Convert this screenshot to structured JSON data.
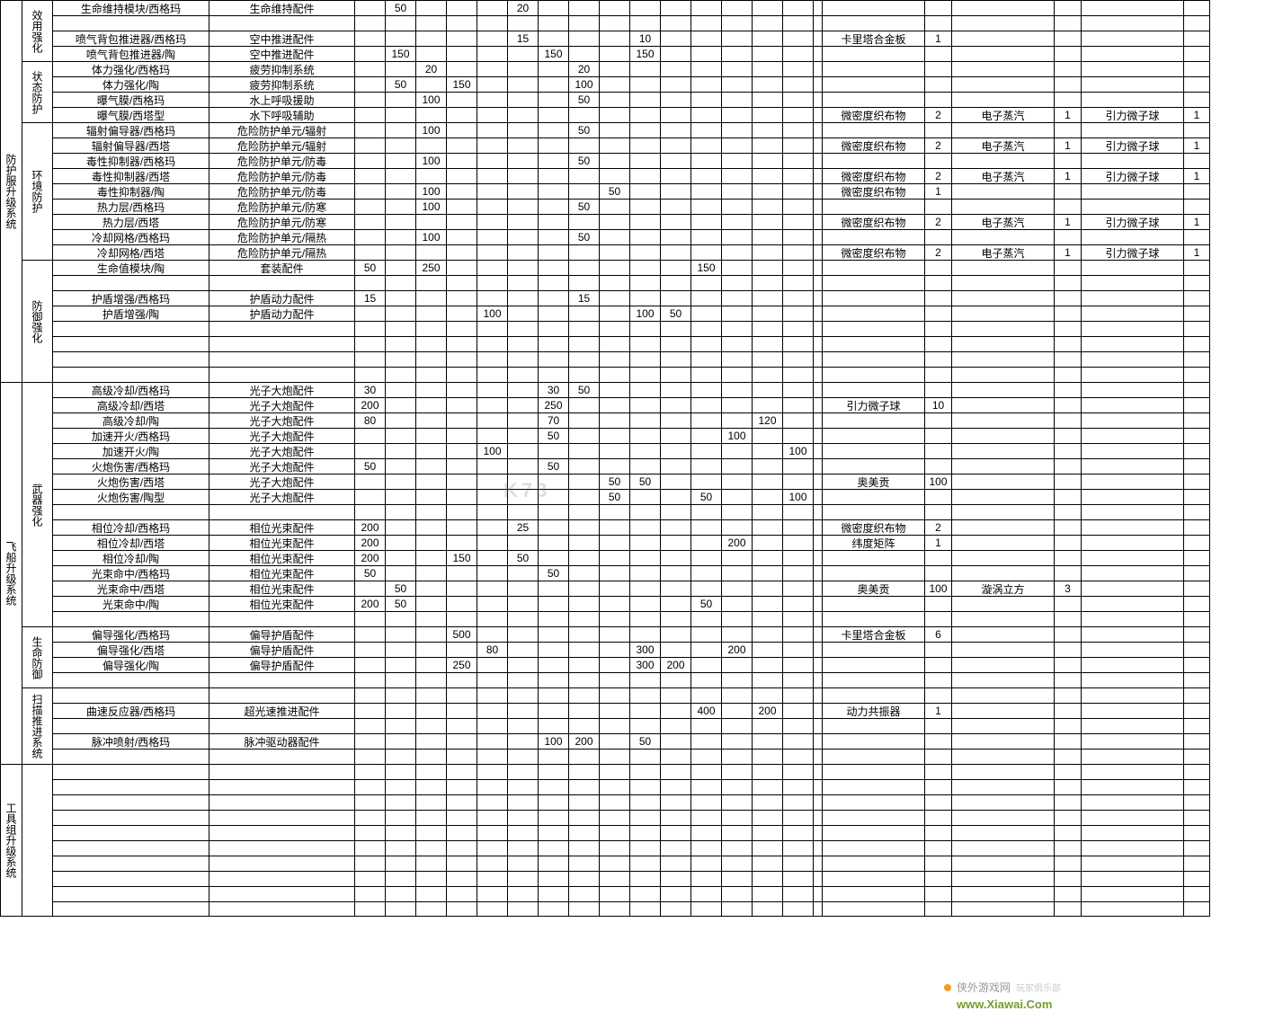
{
  "watermark": "K73",
  "footer": {
    "site_cn": "侠外游戏网",
    "slogan": "玩家俱乐部",
    "url": "www.Xiawai.Com"
  },
  "systems": [
    {
      "label": "防护服升级系统",
      "groups": [
        {
          "label": "效用强化",
          "rows": [
            {
              "name": "生命维持模块/西格玛",
              "type": "生命维持配件",
              "n": {
                "c2": "50",
                "c6": "20"
              }
            },
            {
              "blank": true
            },
            {
              "name": "喷气背包推进器/西格玛",
              "type": "空中推进配件",
              "n": {
                "c6": "15",
                "c10": "10"
              },
              "mats": [
                [
                  "卡里塔合金板",
                  "1"
                ]
              ]
            },
            {
              "name": "喷气背包推进器/陶",
              "type": "空中推进配件",
              "n": {
                "c2": "150",
                "c7": "150",
                "c10": "150"
              }
            }
          ]
        },
        {
          "label": "状态防护",
          "rows": [
            {
              "name": "体力强化/西格玛",
              "type": "疲劳抑制系统",
              "n": {
                "c3": "20",
                "c8": "20"
              }
            },
            {
              "name": "体力强化/陶",
              "type": "疲劳抑制系统",
              "n": {
                "c2": "50",
                "c4": "150",
                "c8": "100"
              }
            },
            {
              "name": "曝气膜/西格玛",
              "type": "水上呼吸援助",
              "n": {
                "c3": "100",
                "c8": "50"
              }
            },
            {
              "name": "曝气膜/西塔型",
              "type": "水下呼吸辅助",
              "n": {},
              "mats": [
                [
                  "微密度织布物",
                  "2"
                ],
                [
                  "电子蒸汽",
                  "1"
                ],
                [
                  "引力微子球",
                  "1"
                ]
              ]
            }
          ]
        },
        {
          "label": "环境防护",
          "rows": [
            {
              "name": "辐射偏导器/西格玛",
              "type": "危险防护单元/辐射",
              "n": {
                "c3": "100",
                "c8": "50"
              }
            },
            {
              "name": "辐射偏导器/西塔",
              "type": "危险防护单元/辐射",
              "n": {},
              "mats": [
                [
                  "微密度织布物",
                  "2"
                ],
                [
                  "电子蒸汽",
                  "1"
                ],
                [
                  "引力微子球",
                  "1"
                ]
              ]
            },
            {
              "name": "毒性抑制器/西格玛",
              "type": "危险防护单元/防毒",
              "n": {
                "c3": "100",
                "c8": "50"
              }
            },
            {
              "name": "毒性抑制器/西塔",
              "type": "危险防护单元/防毒",
              "n": {},
              "mats": [
                [
                  "微密度织布物",
                  "2"
                ],
                [
                  "电子蒸汽",
                  "1"
                ],
                [
                  "引力微子球",
                  "1"
                ]
              ]
            },
            {
              "name": "毒性抑制器/陶",
              "type": "危险防护单元/防毒",
              "n": {
                "c3": "100",
                "c9": "50"
              },
              "mats": [
                [
                  "微密度织布物",
                  "1"
                ]
              ]
            },
            {
              "name": "热力层/西格玛",
              "type": "危险防护单元/防寒",
              "n": {
                "c3": "100",
                "c8": "50"
              }
            },
            {
              "name": "热力层/西塔",
              "type": "危险防护单元/防寒",
              "n": {},
              "mats": [
                [
                  "微密度织布物",
                  "2"
                ],
                [
                  "电子蒸汽",
                  "1"
                ],
                [
                  "引力微子球",
                  "1"
                ]
              ]
            },
            {
              "name": "冷却网格/西格玛",
              "type": "危险防护单元/隔热",
              "n": {
                "c3": "100",
                "c8": "50"
              }
            },
            {
              "name": "冷却网格/西塔",
              "type": "危险防护单元/隔热",
              "n": {},
              "mats": [
                [
                  "微密度织布物",
                  "2"
                ],
                [
                  "电子蒸汽",
                  "1"
                ],
                [
                  "引力微子球",
                  "1"
                ]
              ]
            }
          ]
        },
        {
          "label": "防御强化",
          "rows": [
            {
              "name": "生命值模块/陶",
              "type": "套装配件",
              "n": {
                "c1": "50",
                "c3": "250",
                "c12": "150"
              }
            },
            {
              "blank": true
            },
            {
              "name": "护盾增强/西格玛",
              "type": "护盾动力配件",
              "n": {
                "c1": "15",
                "c8": "15"
              }
            },
            {
              "name": "护盾增强/陶",
              "type": "护盾动力配件",
              "n": {
                "c5": "100",
                "c10": "100",
                "c11": "50"
              }
            },
            {
              "blank": true
            },
            {
              "blank": true
            },
            {
              "blank": true
            },
            {
              "blank": true
            }
          ]
        }
      ]
    },
    {
      "label": "飞船升级系统",
      "groups": [
        {
          "label": "武器强化",
          "rows": [
            {
              "name": "高级冷却/西格玛",
              "type": "光子大炮配件",
              "n": {
                "c1": "30",
                "c7": "30",
                "c8": "50"
              }
            },
            {
              "name": "高级冷却/西塔",
              "type": "光子大炮配件",
              "n": {
                "c1": "200",
                "c7": "250"
              },
              "mats": [
                [
                  "引力微子球",
                  "10"
                ]
              ]
            },
            {
              "name": "高级冷却/陶",
              "type": "光子大炮配件",
              "n": {
                "c1": "80",
                "c7": "70",
                "c14": "120"
              }
            },
            {
              "name": "加速开火/西格玛",
              "type": "光子大炮配件",
              "n": {
                "c7": "50",
                "c13": "100"
              }
            },
            {
              "name": "加速开火/陶",
              "type": "光子大炮配件",
              "n": {
                "c5": "100",
                "c15": "100"
              }
            },
            {
              "name": "火炮伤害/西格玛",
              "type": "光子大炮配件",
              "n": {
                "c1": "50",
                "c7": "50"
              }
            },
            {
              "name": "火炮伤害/西塔",
              "type": "光子大炮配件",
              "n": {
                "c9": "50",
                "c10": "50"
              },
              "mats": [
                [
                  "奥美贡",
                  "100"
                ]
              ]
            },
            {
              "name": "火炮伤害/陶型",
              "type": "光子大炮配件",
              "n": {
                "c9": "50",
                "c12": "50",
                "c15": "100"
              }
            },
            {
              "blank": true
            },
            {
              "name": "相位冷却/西格玛",
              "type": "相位光束配件",
              "n": {
                "c1": "200",
                "c6": "25"
              },
              "mats": [
                [
                  "微密度织布物",
                  "2"
                ]
              ]
            },
            {
              "name": "相位冷却/西塔",
              "type": "相位光束配件",
              "n": {
                "c1": "200",
                "c13": "200"
              },
              "mats": [
                [
                  "纬度矩阵",
                  "1"
                ]
              ]
            },
            {
              "name": "相位冷却/陶",
              "type": "相位光束配件",
              "n": {
                "c1": "200",
                "c4": "150",
                "c6": "50"
              }
            },
            {
              "name": "光束命中/西格玛",
              "type": "相位光束配件",
              "n": {
                "c1": "50",
                "c7": "50"
              }
            },
            {
              "name": "光束命中/西塔",
              "type": "相位光束配件",
              "n": {
                "c2": "50"
              },
              "mats": [
                [
                  "奥美贡",
                  "100"
                ],
                [
                  "漩涡立方",
                  "3"
                ]
              ]
            },
            {
              "name": "光束命中/陶",
              "type": "相位光束配件",
              "n": {
                "c1": "200",
                "c2": "50",
                "c12": "50"
              }
            },
            {
              "blank": true
            }
          ]
        },
        {
          "label": "生命防御",
          "rows": [
            {
              "name": "偏导强化/西格玛",
              "type": "偏导护盾配件",
              "n": {
                "c4": "500"
              },
              "mats": [
                [
                  "卡里塔合金板",
                  "6"
                ]
              ]
            },
            {
              "name": "偏导强化/西塔",
              "type": "偏导护盾配件",
              "n": {
                "c5": "80",
                "c10": "300",
                "c13": "200"
              }
            },
            {
              "name": "偏导强化/陶",
              "type": "偏导护盾配件",
              "n": {
                "c4": "250",
                "c10": "300",
                "c11": "200"
              }
            },
            {
              "blank": true
            }
          ]
        },
        {
          "label": "扫描推进系统",
          "rows": [
            {
              "blank": true
            },
            {
              "name": "曲速反应器/西格玛",
              "type": "超光速推进配件",
              "n": {
                "c12": "400",
                "c14": "200"
              },
              "mats": [
                [
                  "动力共振器",
                  "1"
                ]
              ]
            },
            {
              "blank": true
            },
            {
              "name": "脉冲喷射/西格玛",
              "type": "脉冲驱动器配件",
              "n": {
                "c7": "100",
                "c8": "200",
                "c10": "50"
              }
            },
            {
              "blank": true
            }
          ]
        }
      ]
    },
    {
      "label": "工具组升级系统",
      "groups": [
        {
          "label": "",
          "rows": [
            {
              "blank": true
            },
            {
              "blank": true
            },
            {
              "blank": true
            },
            {
              "blank": true
            },
            {
              "blank": true
            },
            {
              "blank": true
            },
            {
              "blank": true
            },
            {
              "blank": true
            },
            {
              "blank": true
            },
            {
              "blank": true
            }
          ]
        }
      ]
    }
  ],
  "num_cols": 15,
  "mat_slots": 3
}
